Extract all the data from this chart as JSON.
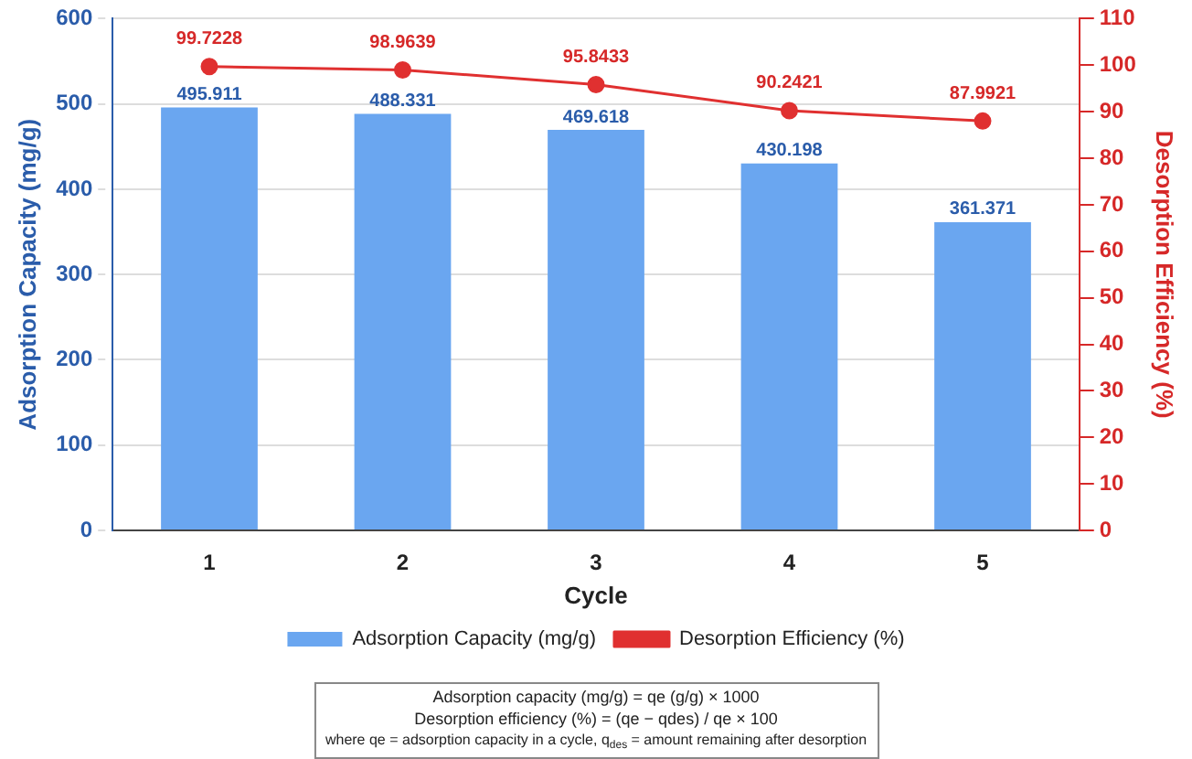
{
  "chart_data": {
    "type": "bar",
    "xlabel": "Cycle",
    "ylabel": "Adsorption Capacity (mg/g)",
    "y2label": "Desorption Efficiency (%)",
    "categories": [
      "1",
      "2",
      "3",
      "4",
      "5"
    ],
    "series": [
      {
        "name": "Adsorption Capacity (mg/g)",
        "color": "#6aa6f0",
        "values": [
          495.911,
          488.331,
          469.618,
          430.198,
          361.371
        ]
      },
      {
        "name": "Desorption Efficiency (%)",
        "type": "line",
        "axis": "y2",
        "color": "#e03030",
        "values": [
          99.7228,
          98.9639,
          95.8433,
          90.2421,
          87.9921
        ]
      }
    ],
    "ylim": [
      0,
      600
    ],
    "yticks": [
      0,
      100,
      200,
      300,
      400,
      500,
      600
    ],
    "y2lim": [
      0,
      110
    ],
    "y2ticks": [
      0,
      10,
      20,
      30,
      40,
      50,
      60,
      70,
      80,
      90,
      100,
      110
    ],
    "grid": "y",
    "legend": "bottom",
    "marker": "circle",
    "line_style": "solid",
    "data_labels": true,
    "annotations": [
      "Adsorption capacity (mg/g) = qe (g/g) × 1000",
      "Desorption efficiency (%) = (qe − qdes) / qe × 100",
      "where qe = adsorption capacity in a cycle, q$_{des}$ = amount remaining after desorption"
    ]
  }
}
